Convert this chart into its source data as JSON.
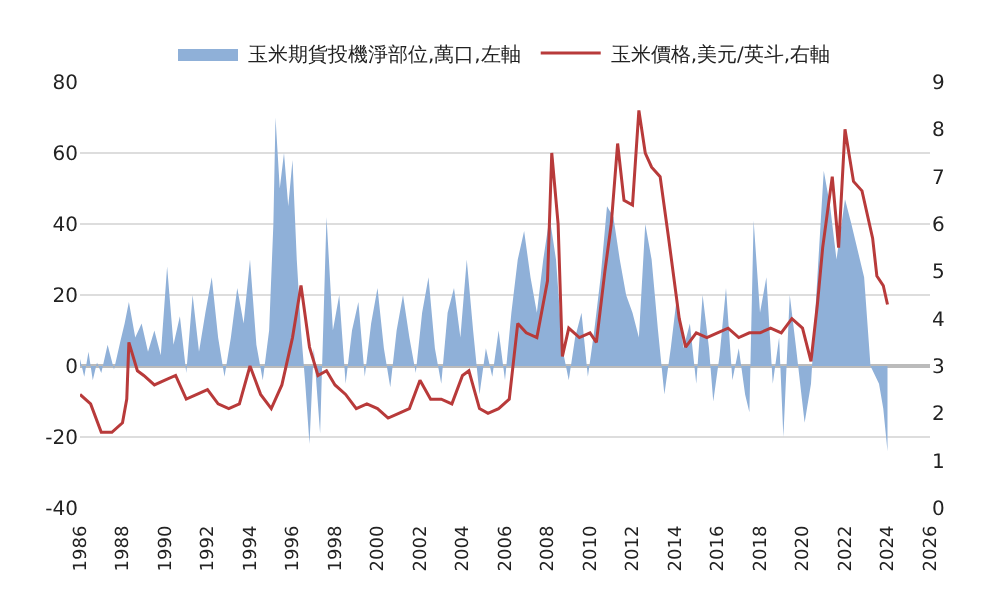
{
  "chart_data": {
    "type": "line",
    "legend": "top",
    "grid": "y",
    "xlim": [
      1986,
      2026
    ],
    "xticks": [
      1986,
      1988,
      1990,
      1992,
      1994,
      1996,
      1998,
      2000,
      2002,
      2004,
      2006,
      2008,
      2010,
      2012,
      2014,
      2016,
      2018,
      2020,
      2022,
      2024,
      2026
    ],
    "ylim": [
      -40,
      80
    ],
    "yticks": [
      -40,
      -20,
      0,
      20,
      40,
      60,
      80
    ],
    "y2lim": [
      0,
      9
    ],
    "y2ticks": [
      0,
      1,
      2,
      3,
      4,
      5,
      6,
      7,
      8,
      9
    ],
    "series": [
      {
        "name": "玉米期貨投機淨部位,萬口,左軸",
        "type": "area",
        "color": "#8fb0d8",
        "x": [
          1986.0,
          1986.2,
          1986.4,
          1986.6,
          1986.8,
          1987.0,
          1987.3,
          1987.6,
          1987.9,
          1988.1,
          1988.3,
          1988.6,
          1988.9,
          1989.2,
          1989.5,
          1989.8,
          1990.1,
          1990.4,
          1990.7,
          1991.0,
          1991.3,
          1991.6,
          1991.9,
          1992.2,
          1992.5,
          1992.8,
          1993.1,
          1993.4,
          1993.7,
          1994.0,
          1994.3,
          1994.6,
          1994.9,
          1995.1,
          1995.2,
          1995.4,
          1995.6,
          1995.8,
          1996.0,
          1996.2,
          1996.4,
          1996.6,
          1996.8,
          1997.0,
          1997.3,
          1997.6,
          1997.9,
          1998.2,
          1998.5,
          1998.8,
          1999.1,
          1999.4,
          1999.7,
          2000.0,
          2000.3,
          2000.6,
          2000.9,
          2001.2,
          2001.5,
          2001.8,
          2002.1,
          2002.4,
          2002.7,
          2003.0,
          2003.3,
          2003.6,
          2003.9,
          2004.2,
          2004.5,
          2004.8,
          2005.1,
          2005.4,
          2005.7,
          2006.0,
          2006.3,
          2006.6,
          2006.9,
          2007.2,
          2007.5,
          2007.8,
          2008.1,
          2008.4,
          2008.7,
          2009.0,
          2009.3,
          2009.6,
          2009.9,
          2010.2,
          2010.5,
          2010.8,
          2011.1,
          2011.4,
          2011.7,
          2012.0,
          2012.3,
          2012.6,
          2012.9,
          2013.2,
          2013.5,
          2013.8,
          2014.1,
          2014.4,
          2014.7,
          2015.0,
          2015.3,
          2015.6,
          2015.8,
          2016.1,
          2016.4,
          2016.7,
          2017.0,
          2017.3,
          2017.5,
          2017.7,
          2018.0,
          2018.3,
          2018.6,
          2018.9,
          2019.1,
          2019.4,
          2019.7,
          2020.1,
          2020.4,
          2020.7,
          2021.0,
          2021.3,
          2021.6,
          2022.0,
          2022.3,
          2022.5,
          2022.9,
          2023.2,
          2023.6,
          2023.8,
          2024.0
        ],
        "values": [
          2,
          -3,
          4,
          -4,
          1,
          -2,
          6,
          -1,
          7,
          12,
          18,
          8,
          12,
          4,
          10,
          3,
          28,
          6,
          14,
          -2,
          20,
          4,
          15,
          25,
          8,
          -3,
          8,
          22,
          12,
          30,
          6,
          -4,
          10,
          40,
          70,
          50,
          60,
          45,
          58,
          30,
          10,
          -5,
          -22,
          5,
          -19,
          42,
          10,
          20,
          -5,
          10,
          18,
          -3,
          12,
          22,
          5,
          -6,
          10,
          20,
          8,
          -2,
          15,
          25,
          5,
          -5,
          15,
          22,
          8,
          30,
          10,
          -8,
          5,
          -3,
          10,
          -4,
          15,
          30,
          38,
          25,
          15,
          30,
          42,
          30,
          5,
          -4,
          8,
          15,
          -3,
          10,
          25,
          45,
          42,
          30,
          20,
          15,
          8,
          40,
          30,
          10,
          -8,
          5,
          20,
          5,
          12,
          -5,
          20,
          5,
          -10,
          3,
          22,
          -4,
          5,
          -8,
          -13,
          41,
          15,
          25,
          -5,
          8,
          -20,
          20,
          5,
          -16,
          -5,
          25,
          55,
          45,
          30,
          47,
          40,
          35,
          25,
          0,
          -5,
          -12,
          -24
        ]
      },
      {
        "name": "玉米價格,美元/英斗,右軸",
        "axis": "y2",
        "color": "#b83a3a",
        "x": [
          1986.0,
          1986.5,
          1987.0,
          1987.5,
          1988.0,
          1988.2,
          1988.3,
          1988.7,
          1989.0,
          1989.5,
          1990.0,
          1990.5,
          1991.0,
          1991.5,
          1992.0,
          1992.5,
          1993.0,
          1993.5,
          1994.0,
          1994.5,
          1995.0,
          1995.5,
          1996.0,
          1996.4,
          1996.8,
          1997.2,
          1997.6,
          1998.0,
          1998.5,
          1999.0,
          1999.5,
          2000.0,
          2000.5,
          2001.0,
          2001.5,
          2002.0,
          2002.5,
          2003.0,
          2003.5,
          2004.0,
          2004.3,
          2004.8,
          2005.2,
          2005.7,
          2006.2,
          2006.6,
          2007.0,
          2007.5,
          2008.0,
          2008.2,
          2008.5,
          2008.7,
          2009.0,
          2009.5,
          2010.0,
          2010.3,
          2010.7,
          2011.0,
          2011.3,
          2011.6,
          2012.0,
          2012.3,
          2012.6,
          2012.9,
          2013.3,
          2013.7,
          2014.2,
          2014.5,
          2015.0,
          2015.5,
          2016.0,
          2016.5,
          2017.0,
          2017.5,
          2018.0,
          2018.5,
          2019.0,
          2019.5,
          2020.0,
          2020.4,
          2020.7,
          2020.95,
          2021.4,
          2021.7,
          2022.0,
          2022.4,
          2022.8,
          2023.3,
          2023.5,
          2023.8,
          2024.0
        ],
        "values": [
          2.4,
          2.2,
          1.6,
          1.6,
          1.8,
          2.3,
          3.5,
          2.9,
          2.8,
          2.6,
          2.7,
          2.8,
          2.3,
          2.4,
          2.5,
          2.2,
          2.1,
          2.2,
          3.0,
          2.4,
          2.1,
          2.6,
          3.6,
          4.7,
          3.4,
          2.8,
          2.9,
          2.6,
          2.4,
          2.1,
          2.2,
          2.1,
          1.9,
          2.0,
          2.1,
          2.7,
          2.3,
          2.3,
          2.2,
          2.8,
          2.9,
          2.1,
          2.0,
          2.1,
          2.3,
          3.9,
          3.7,
          3.6,
          4.8,
          7.5,
          6.0,
          3.2,
          3.8,
          3.6,
          3.7,
          3.5,
          5.0,
          6.0,
          7.7,
          6.5,
          6.4,
          8.4,
          7.5,
          7.2,
          7.0,
          5.7,
          4.0,
          3.4,
          3.7,
          3.6,
          3.7,
          3.8,
          3.6,
          3.7,
          3.7,
          3.8,
          3.7,
          4.0,
          3.8,
          3.1,
          4.3,
          5.5,
          7.0,
          5.5,
          8.0,
          6.9,
          6.7,
          5.7,
          4.9,
          4.7,
          4.3
        ]
      }
    ]
  }
}
